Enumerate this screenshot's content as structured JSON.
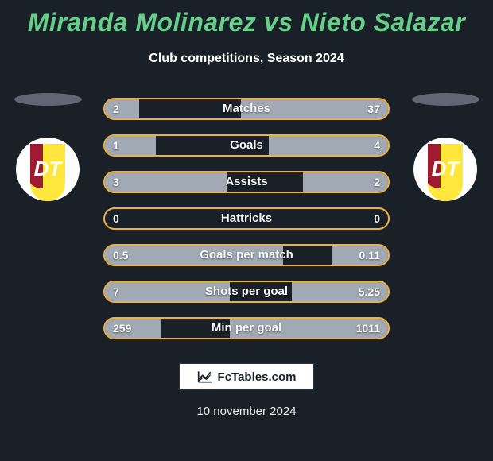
{
  "title_color": "#66d08b",
  "accent_border": "#f2b23a",
  "bar_fill": "#a0a9b4",
  "background": "#1a2028",
  "header": {
    "player_left": "Miranda Molinarez",
    "vs": "vs",
    "player_right": "Nieto Salazar"
  },
  "subtitle": "Club competitions, Season 2024",
  "stats": [
    {
      "label": "Matches",
      "left_val": "2",
      "right_val": "37",
      "left_pct": 12,
      "right_pct": 52
    },
    {
      "label": "Goals",
      "left_val": "1",
      "right_val": "4",
      "left_pct": 18,
      "right_pct": 42
    },
    {
      "label": "Assists",
      "left_val": "3",
      "right_val": "2",
      "left_pct": 43,
      "right_pct": 30
    },
    {
      "label": "Hattricks",
      "left_val": "0",
      "right_val": "0",
      "left_pct": 0,
      "right_pct": 0
    },
    {
      "label": "Goals per match",
      "left_val": "0.5",
      "right_val": "0.11",
      "left_pct": 63,
      "right_pct": 20
    },
    {
      "label": "Shots per goal",
      "left_val": "7",
      "right_val": "5.25",
      "left_pct": 44,
      "right_pct": 34
    },
    {
      "label": "Min per goal",
      "left_val": "259",
      "right_val": "1011",
      "left_pct": 20,
      "right_pct": 56
    }
  ],
  "club_badge": {
    "bg": "#ffe83b",
    "stripe": "#9e1b32",
    "letters": "DT",
    "letters_color": "#ffffff"
  },
  "attribution": "FcTables.com",
  "date": "10 november 2024"
}
